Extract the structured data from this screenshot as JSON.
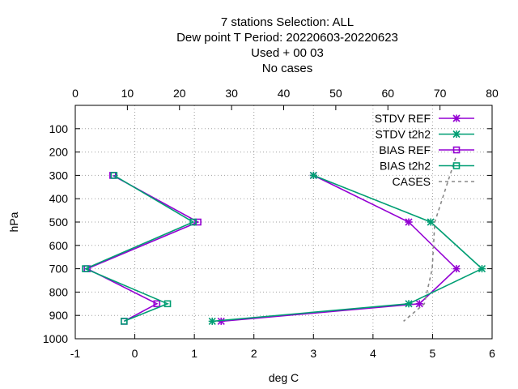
{
  "chart_data": {
    "type": "line",
    "title_lines": [
      "7 stations Selection: ALL",
      "Dew point T  Period: 20220603-20220623",
      "Used   + 00 03",
      "No cases"
    ],
    "xlabel": "deg C",
    "ylabel": "hPa",
    "xlim": [
      -1,
      6
    ],
    "ylim": [
      1000,
      0
    ],
    "x2lim": [
      0,
      80
    ],
    "x_ticks": [
      -1,
      0,
      1,
      2,
      3,
      4,
      5,
      6
    ],
    "x2_ticks": [
      0,
      10,
      20,
      30,
      40,
      50,
      60,
      70,
      80
    ],
    "y_ticks": [
      100,
      200,
      300,
      400,
      500,
      600,
      700,
      800,
      900,
      1000
    ],
    "grid": true,
    "legend_position": "top-right",
    "series": [
      {
        "name": "STDV REF",
        "color": "#9400d3",
        "marker": "x",
        "axis": "x",
        "points": [
          [
            3.0,
            300
          ],
          [
            4.6,
            500
          ],
          [
            5.4,
            700
          ],
          [
            4.78,
            850
          ],
          [
            1.45,
            925
          ]
        ]
      },
      {
        "name": "STDV t2h2",
        "color": "#009e73",
        "marker": "x",
        "axis": "x",
        "points": [
          [
            3.0,
            300
          ],
          [
            4.97,
            500
          ],
          [
            5.83,
            700
          ],
          [
            4.6,
            850
          ],
          [
            1.3,
            925
          ]
        ]
      },
      {
        "name": "BIAS REF",
        "color": "#9400d3",
        "marker": "square",
        "axis": "x",
        "points": [
          [
            -0.37,
            300
          ],
          [
            1.06,
            500
          ],
          [
            -0.8,
            700
          ],
          [
            0.37,
            850
          ],
          [
            -0.18,
            925
          ]
        ]
      },
      {
        "name": "BIAS t2h2",
        "color": "#009e73",
        "marker": "square",
        "axis": "x",
        "points": [
          [
            -0.35,
            300
          ],
          [
            0.98,
            500
          ],
          [
            -0.83,
            700
          ],
          [
            0.55,
            850
          ],
          [
            -0.18,
            925
          ]
        ]
      },
      {
        "name": "CASES",
        "color": "#888888",
        "marker": "none",
        "dashed": true,
        "axis": "x2",
        "points": [
          [
            73,
            225
          ],
          [
            69,
            500
          ],
          [
            68.5,
            700
          ],
          [
            67,
            850
          ],
          [
            63,
            925
          ]
        ]
      }
    ]
  }
}
